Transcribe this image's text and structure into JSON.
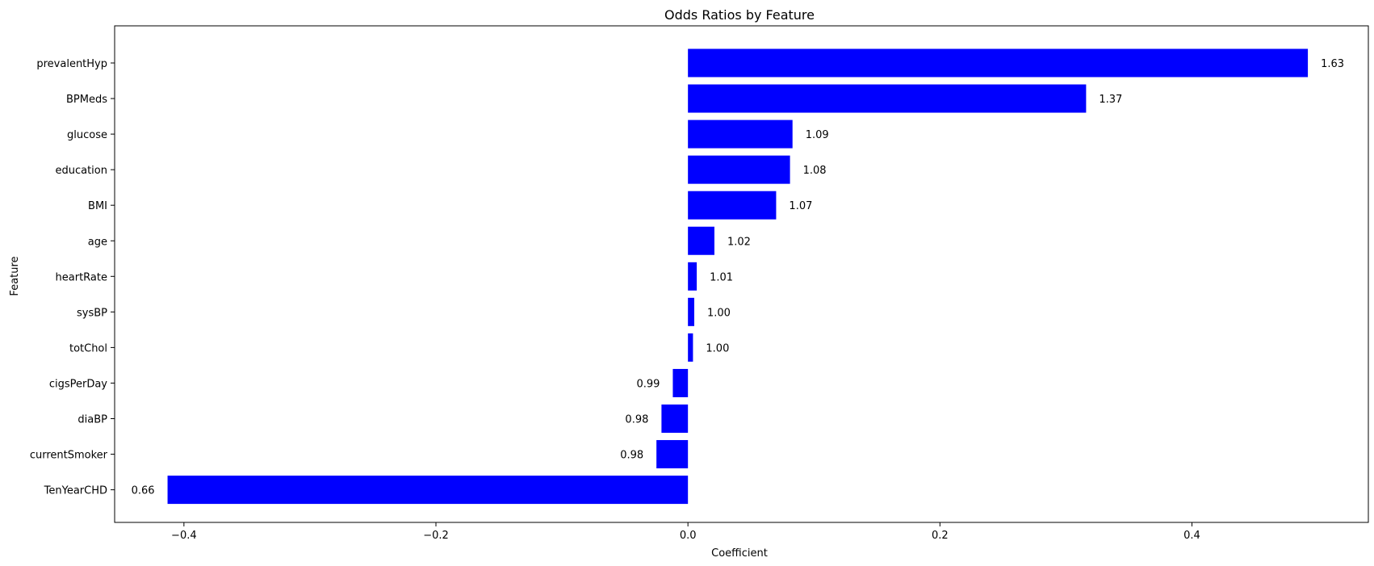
{
  "chart_data": {
    "type": "bar",
    "orientation": "horizontal",
    "title": "Odds Ratios by Feature",
    "xlabel": "Coefficient",
    "ylabel": "Feature",
    "xlim": [
      -0.455,
      0.54
    ],
    "xticks": [
      -0.4,
      -0.2,
      0.0,
      0.2,
      0.4
    ],
    "xtick_labels": [
      "−0.4",
      "−0.2",
      "0.0",
      "0.2",
      "0.4"
    ],
    "grid": false,
    "bar_color": "#0000ff",
    "categories": [
      "prevalentHyp",
      "BPMeds",
      "glucose",
      "education",
      "BMI",
      "age",
      "heartRate",
      "sysBP",
      "totChol",
      "cigsPerDay",
      "diaBP",
      "currentSmoker",
      "TenYearCHD"
    ],
    "values": [
      0.492,
      0.316,
      0.083,
      0.081,
      0.07,
      0.021,
      0.007,
      0.005,
      0.004,
      -0.012,
      -0.021,
      -0.025,
      -0.413
    ],
    "data_labels": [
      "1.63",
      "1.37",
      "1.09",
      "1.08",
      "1.07",
      "1.02",
      "1.01",
      "1.00",
      "1.00",
      "0.99",
      "0.98",
      "0.98",
      "0.66"
    ]
  }
}
